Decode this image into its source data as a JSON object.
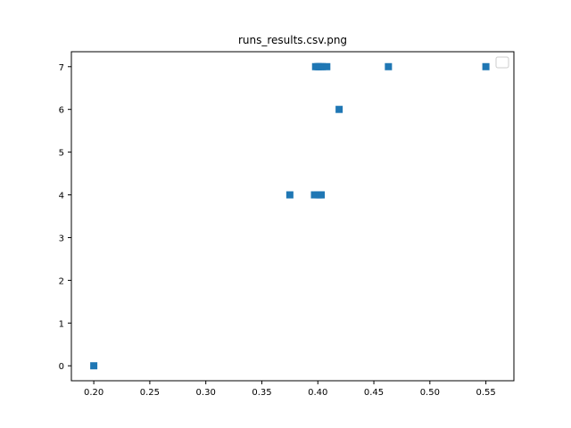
{
  "chart_data": {
    "type": "scatter",
    "title": "runs_results.csv.png",
    "xlabel": "",
    "ylabel": "",
    "xlim": [
      0.18,
      0.575
    ],
    "ylim": [
      -0.35,
      7.35
    ],
    "x_ticks": [
      0.2,
      0.25,
      0.3,
      0.35,
      0.4,
      0.45,
      0.5,
      0.55
    ],
    "x_tick_labels": [
      "0.20",
      "0.25",
      "0.30",
      "0.35",
      "0.40",
      "0.45",
      "0.50",
      "0.55"
    ],
    "y_ticks": [
      0,
      1,
      2,
      3,
      4,
      5,
      6,
      7
    ],
    "y_tick_labels": [
      "0",
      "1",
      "2",
      "3",
      "4",
      "5",
      "6",
      "7"
    ],
    "grid": false,
    "legend": {
      "placement": "top-right",
      "entries": []
    },
    "marker": "square",
    "color": "#1f77b4",
    "series": [
      {
        "points": [
          {
            "x": 0.2,
            "y": 0
          },
          {
            "x": 0.375,
            "y": 4
          },
          {
            "x": 0.397,
            "y": 4
          },
          {
            "x": 0.4,
            "y": 4
          },
          {
            "x": 0.401,
            "y": 4
          },
          {
            "x": 0.402,
            "y": 4
          },
          {
            "x": 0.403,
            "y": 4
          },
          {
            "x": 0.398,
            "y": 7
          },
          {
            "x": 0.4,
            "y": 7
          },
          {
            "x": 0.401,
            "y": 7
          },
          {
            "x": 0.402,
            "y": 7
          },
          {
            "x": 0.404,
            "y": 7
          },
          {
            "x": 0.408,
            "y": 7
          },
          {
            "x": 0.419,
            "y": 6
          },
          {
            "x": 0.463,
            "y": 7
          },
          {
            "x": 0.55,
            "y": 7
          }
        ]
      }
    ]
  }
}
